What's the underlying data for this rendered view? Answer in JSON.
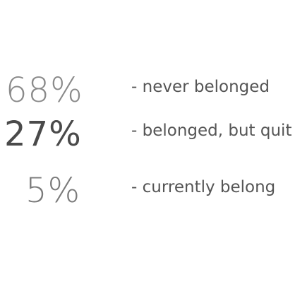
{
  "chart_data": {
    "type": "table",
    "rows": [
      {
        "value": "68%",
        "label": "- never belonged"
      },
      {
        "value": "27%",
        "label": "- belonged, but quit"
      },
      {
        "value": "5%",
        "label": "- currently belong"
      }
    ]
  }
}
